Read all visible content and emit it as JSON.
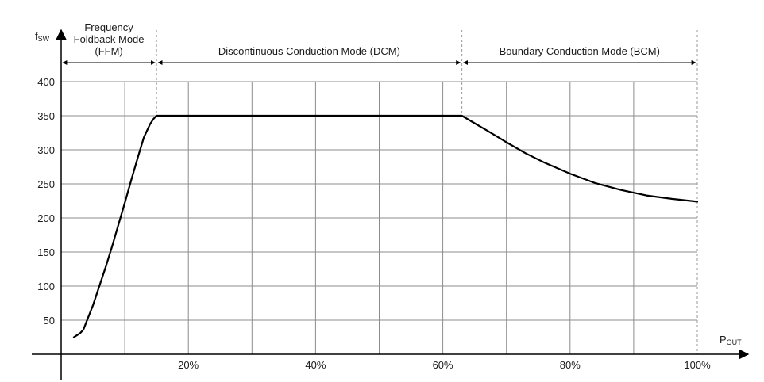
{
  "chart_data": {
    "type": "line",
    "x_ticks": [
      20,
      40,
      60,
      80,
      100
    ],
    "x_tick_labels": [
      "20%",
      "40%",
      "60%",
      "80%",
      "100%"
    ],
    "y_ticks": [
      50,
      100,
      150,
      200,
      250,
      300,
      350,
      400
    ],
    "y_tick_labels": [
      "50",
      "100",
      "150",
      "200",
      "250",
      "300",
      "350",
      "400"
    ],
    "xlim": [
      0,
      100
    ],
    "ylim": [
      0,
      400
    ],
    "grid": true,
    "y_axis_label": {
      "main": "f",
      "sub": "SW"
    },
    "x_axis_label": {
      "main": "P",
      "sub": "OUT"
    },
    "region_boundaries": [
      0,
      15,
      63,
      100
    ],
    "regions": [
      {
        "label_lines": [
          "Frequency",
          "Foldback Mode",
          "(FFM)"
        ],
        "x_start": 0,
        "x_end": 15
      },
      {
        "label_lines": [
          "Discontinuous Conduction Mode (DCM)"
        ],
        "x_start": 15,
        "x_end": 63
      },
      {
        "label_lines": [
          "Boundary Conduction Mode (BCM)"
        ],
        "x_start": 63,
        "x_end": 100
      }
    ],
    "series": [
      {
        "x": [
          2,
          2.5,
          3,
          3.5,
          4,
          5,
          6,
          7,
          8,
          9,
          10,
          11,
          12,
          13,
          14,
          14.5,
          15,
          63,
          65,
          67,
          70,
          73,
          76,
          80,
          84,
          88,
          92,
          96,
          100
        ],
        "y": [
          25,
          28,
          31,
          36,
          48,
          72,
          100,
          128,
          158,
          190,
          222,
          255,
          287,
          318,
          338,
          345,
          350,
          350,
          339,
          328,
          311,
          295,
          281,
          265,
          251,
          241,
          233,
          228,
          224
        ]
      }
    ]
  }
}
